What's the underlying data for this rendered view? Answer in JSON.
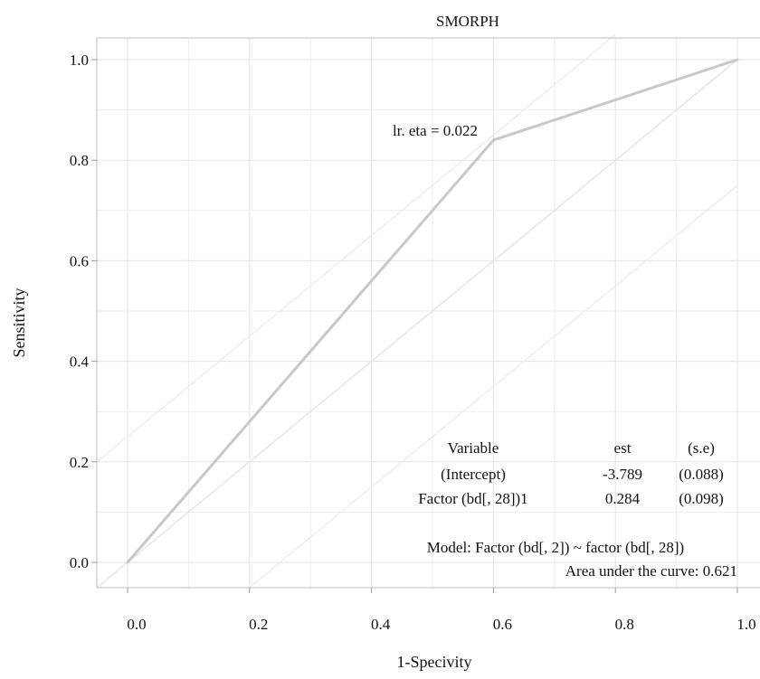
{
  "chart_data": {
    "type": "line",
    "title": "SMORPH",
    "xlabel": "1-Specivity",
    "ylabel": "Sensitivity",
    "xlim": [
      -0.05,
      1.0
    ],
    "ylim": [
      -0.05,
      1.03
    ],
    "x_ticks": [
      "0.0",
      "0.2",
      "0.4",
      "0.6",
      "0.8",
      "1.0"
    ],
    "y_ticks": [
      "0.0",
      "0.2",
      "0.4",
      "0.6",
      "0.8",
      "1.0"
    ],
    "grid": true,
    "series": [
      {
        "x": [
          0.0,
          0.6,
          1.0
        ],
        "y": [
          0.0,
          0.84,
          1.0
        ],
        "color": "#c8c8c8"
      }
    ],
    "reference_lines": [
      {
        "x": [
          -0.05,
          1.0
        ],
        "y": [
          -0.05,
          1.0
        ],
        "color": "#e6e6e6"
      },
      {
        "x": [
          -0.05,
          0.8
        ],
        "y": [
          0.2,
          1.05
        ],
        "color": "#ededed"
      },
      {
        "x": [
          0.2,
          1.0
        ],
        "y": [
          -0.05,
          0.75
        ],
        "color": "#ededed"
      }
    ],
    "annotations": {
      "cutpoint_label": "lr. eta = 0.022",
      "cutpoint": {
        "x": 0.6,
        "y": 0.84
      }
    },
    "coefficient_table": {
      "headers": [
        "Variable",
        "est",
        "(s.e)"
      ],
      "rows": [
        [
          "(Intercept)",
          "-3.789",
          "(0.088)"
        ],
        [
          "Factor (bd[, 28])1",
          "0.284",
          "(0.098)"
        ]
      ]
    },
    "model_text": "Model: Factor (bd[, 2]) ~ factor (bd[, 28])",
    "auc_text": "Area under the curve: 0.621"
  }
}
